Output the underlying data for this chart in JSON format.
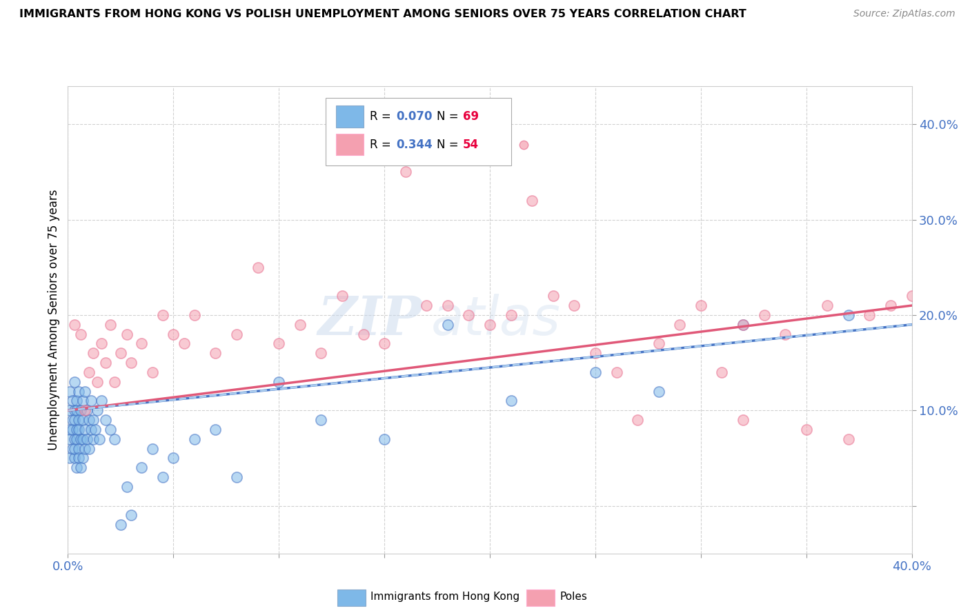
{
  "title": "IMMIGRANTS FROM HONG KONG VS POLISH UNEMPLOYMENT AMONG SENIORS OVER 75 YEARS CORRELATION CHART",
  "source": "Source: ZipAtlas.com",
  "ylabel": "Unemployment Among Seniors over 75 years",
  "xmin": 0.0,
  "xmax": 0.4,
  "ymin": -0.05,
  "ymax": 0.44,
  "xticks": [
    0.0,
    0.05,
    0.1,
    0.15,
    0.2,
    0.25,
    0.3,
    0.35,
    0.4
  ],
  "yticks": [
    0.0,
    0.1,
    0.2,
    0.3,
    0.4
  ],
  "ytick_labels": [
    "",
    "10.0%",
    "20.0%",
    "30.0%",
    "40.0%"
  ],
  "legend_r1": "0.070",
  "legend_n1": "69",
  "legend_r2": "0.344",
  "legend_n2": "54",
  "color_hk": "#7EB8E8",
  "color_hk_dark": "#4472C4",
  "color_poles": "#F4A0B0",
  "color_poles_dark": "#E87090",
  "color_r_value": "#4472C4",
  "color_n_value": "#E8003D",
  "watermark_zip": "ZIP",
  "watermark_atlas": "atlas",
  "hk_x": [
    0.001,
    0.001,
    0.001,
    0.001,
    0.001,
    0.002,
    0.002,
    0.002,
    0.002,
    0.003,
    0.003,
    0.003,
    0.003,
    0.003,
    0.003,
    0.004,
    0.004,
    0.004,
    0.004,
    0.004,
    0.005,
    0.005,
    0.005,
    0.005,
    0.005,
    0.006,
    0.006,
    0.006,
    0.007,
    0.007,
    0.007,
    0.007,
    0.008,
    0.008,
    0.008,
    0.009,
    0.009,
    0.01,
    0.01,
    0.011,
    0.011,
    0.012,
    0.012,
    0.013,
    0.014,
    0.015,
    0.016,
    0.018,
    0.02,
    0.022,
    0.025,
    0.028,
    0.03,
    0.035,
    0.04,
    0.045,
    0.05,
    0.06,
    0.07,
    0.08,
    0.1,
    0.12,
    0.15,
    0.18,
    0.21,
    0.25,
    0.28,
    0.32,
    0.37
  ],
  "hk_y": [
    0.08,
    0.1,
    0.05,
    0.07,
    0.12,
    0.09,
    0.06,
    0.11,
    0.08,
    0.1,
    0.07,
    0.13,
    0.05,
    0.09,
    0.06,
    0.08,
    0.11,
    0.07,
    0.1,
    0.04,
    0.09,
    0.06,
    0.12,
    0.08,
    0.05,
    0.07,
    0.1,
    0.04,
    0.11,
    0.07,
    0.09,
    0.05,
    0.08,
    0.06,
    0.12,
    0.07,
    0.1,
    0.09,
    0.06,
    0.08,
    0.11,
    0.07,
    0.09,
    0.08,
    0.1,
    0.07,
    0.11,
    0.09,
    0.08,
    0.07,
    -0.02,
    0.02,
    -0.01,
    0.04,
    0.06,
    0.03,
    0.05,
    0.07,
    0.08,
    0.03,
    0.13,
    0.09,
    0.07,
    0.19,
    0.11,
    0.14,
    0.12,
    0.19,
    0.2
  ],
  "poles_x": [
    0.003,
    0.006,
    0.008,
    0.01,
    0.012,
    0.014,
    0.016,
    0.018,
    0.02,
    0.022,
    0.025,
    0.028,
    0.03,
    0.035,
    0.04,
    0.045,
    0.05,
    0.055,
    0.06,
    0.07,
    0.08,
    0.09,
    0.1,
    0.11,
    0.12,
    0.13,
    0.14,
    0.15,
    0.16,
    0.18,
    0.19,
    0.2,
    0.21,
    0.22,
    0.24,
    0.25,
    0.26,
    0.27,
    0.28,
    0.29,
    0.3,
    0.31,
    0.32,
    0.33,
    0.34,
    0.35,
    0.36,
    0.37,
    0.38,
    0.39,
    0.23,
    0.17,
    0.4,
    0.32
  ],
  "poles_y": [
    0.19,
    0.18,
    0.1,
    0.14,
    0.16,
    0.13,
    0.17,
    0.15,
    0.19,
    0.13,
    0.16,
    0.18,
    0.15,
    0.17,
    0.14,
    0.2,
    0.18,
    0.17,
    0.2,
    0.16,
    0.18,
    0.25,
    0.17,
    0.19,
    0.16,
    0.22,
    0.18,
    0.17,
    0.35,
    0.21,
    0.2,
    0.19,
    0.2,
    0.32,
    0.21,
    0.16,
    0.14,
    0.09,
    0.17,
    0.19,
    0.21,
    0.14,
    0.09,
    0.2,
    0.18,
    0.08,
    0.21,
    0.07,
    0.2,
    0.21,
    0.22,
    0.21,
    0.22,
    0.19
  ],
  "hk_trendline": [
    0.1,
    0.19
  ],
  "poles_trendline": [
    0.1,
    0.21
  ]
}
